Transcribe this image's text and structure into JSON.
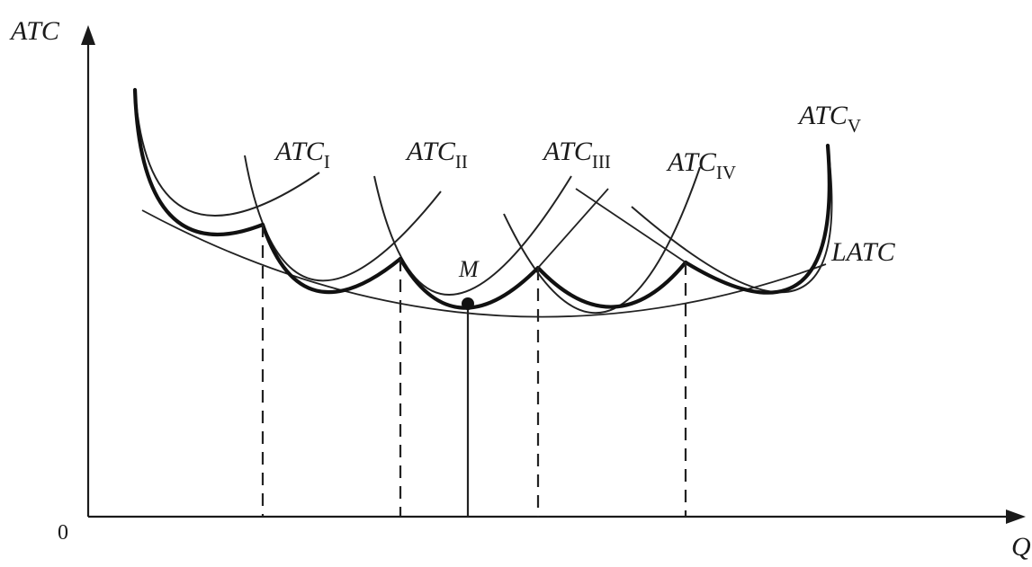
{
  "axes": {
    "y_label": "ATC",
    "x_label": "Q",
    "origin_label": "0"
  },
  "curves": [
    {
      "main": "ATC",
      "sub": "I"
    },
    {
      "main": "ATC",
      "sub": "II"
    },
    {
      "main": "ATC",
      "sub": "III"
    },
    {
      "main": "ATC",
      "sub": "IV"
    },
    {
      "main": "ATC",
      "sub": "V"
    }
  ],
  "envelope": {
    "label": "LATC"
  },
  "point": {
    "label": "M"
  }
}
